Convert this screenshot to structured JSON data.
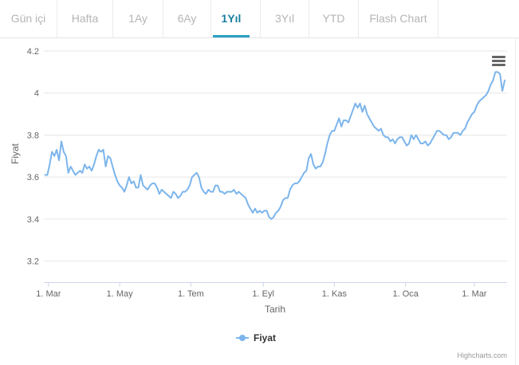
{
  "tabs": [
    {
      "label": "Gün içi",
      "active": false
    },
    {
      "label": "Hafta",
      "active": false
    },
    {
      "label": "1Ay",
      "active": false
    },
    {
      "label": "6Ay",
      "active": false
    },
    {
      "label": "1Yıl",
      "active": true
    },
    {
      "label": "3Yıl",
      "active": false
    },
    {
      "label": "YTD",
      "active": false
    },
    {
      "label": "Flash Chart",
      "active": false
    }
  ],
  "credit": "Highcharts.com",
  "colors": {
    "series": "#7cb5ec",
    "grid": "#e6e6e6",
    "axis_text": "#666666",
    "active_tab": "#1a7fa0"
  },
  "chart_data": {
    "type": "line",
    "title": "",
    "xlabel": "Tarih",
    "ylabel": "Fiyat",
    "ylim": [
      3.1,
      4.2
    ],
    "yticks": [
      3.2,
      3.4,
      3.6,
      3.8,
      4.0,
      4.2
    ],
    "ytick_labels": [
      "3.2",
      "3.4",
      "3.6",
      "3.8",
      "4",
      "4.2"
    ],
    "xlim": [
      "2017-02-25",
      "2018-03-29"
    ],
    "xticks": [
      {
        "date": "2017-03-01",
        "label": "1. Mar"
      },
      {
        "date": "2017-05-01",
        "label": "1. May"
      },
      {
        "date": "2017-07-01",
        "label": "1. Tem"
      },
      {
        "date": "2017-09-01",
        "label": "1. Eyl"
      },
      {
        "date": "2017-11-01",
        "label": "1. Kas"
      },
      {
        "date": "2018-01-01",
        "label": "1. Oca"
      },
      {
        "date": "2018-03-01",
        "label": "1. Mar"
      }
    ],
    "grid": true,
    "legend": "bottom-center",
    "series": [
      {
        "name": "Fiyat",
        "x": [
          "2017-02-26",
          "2017-02-28",
          "2017-03-02",
          "2017-03-04",
          "2017-03-06",
          "2017-03-08",
          "2017-03-10",
          "2017-03-12",
          "2017-03-14",
          "2017-03-16",
          "2017-03-18",
          "2017-03-20",
          "2017-03-22",
          "2017-03-24",
          "2017-03-26",
          "2017-03-28",
          "2017-03-30",
          "2017-04-01",
          "2017-04-03",
          "2017-04-05",
          "2017-04-07",
          "2017-04-09",
          "2017-04-11",
          "2017-04-13",
          "2017-04-15",
          "2017-04-17",
          "2017-04-19",
          "2017-04-21",
          "2017-04-23",
          "2017-04-25",
          "2017-04-27",
          "2017-04-29",
          "2017-05-01",
          "2017-05-03",
          "2017-05-05",
          "2017-05-07",
          "2017-05-09",
          "2017-05-11",
          "2017-05-13",
          "2017-05-15",
          "2017-05-17",
          "2017-05-19",
          "2017-05-21",
          "2017-05-23",
          "2017-05-25",
          "2017-05-27",
          "2017-05-29",
          "2017-05-31",
          "2017-06-02",
          "2017-06-04",
          "2017-06-06",
          "2017-06-08",
          "2017-06-10",
          "2017-06-12",
          "2017-06-14",
          "2017-06-16",
          "2017-06-18",
          "2017-06-20",
          "2017-06-22",
          "2017-06-24",
          "2017-06-26",
          "2017-06-28",
          "2017-06-30",
          "2017-07-02",
          "2017-07-04",
          "2017-07-06",
          "2017-07-08",
          "2017-07-10",
          "2017-07-12",
          "2017-07-14",
          "2017-07-16",
          "2017-07-18",
          "2017-07-20",
          "2017-07-22",
          "2017-07-24",
          "2017-07-26",
          "2017-07-28",
          "2017-07-30",
          "2017-08-01",
          "2017-08-03",
          "2017-08-05",
          "2017-08-07",
          "2017-08-09",
          "2017-08-11",
          "2017-08-13",
          "2017-08-15",
          "2017-08-17",
          "2017-08-19",
          "2017-08-21",
          "2017-08-23",
          "2017-08-25",
          "2017-08-27",
          "2017-08-29",
          "2017-08-31",
          "2017-09-02",
          "2017-09-04",
          "2017-09-06",
          "2017-09-08",
          "2017-09-10",
          "2017-09-12",
          "2017-09-14",
          "2017-09-16",
          "2017-09-18",
          "2017-09-20",
          "2017-09-22",
          "2017-09-24",
          "2017-09-26",
          "2017-09-28",
          "2017-09-30",
          "2017-10-02",
          "2017-10-04",
          "2017-10-06",
          "2017-10-08",
          "2017-10-10",
          "2017-10-12",
          "2017-10-14",
          "2017-10-16",
          "2017-10-18",
          "2017-10-20",
          "2017-10-22",
          "2017-10-24",
          "2017-10-26",
          "2017-10-28",
          "2017-10-30",
          "2017-11-01",
          "2017-11-03",
          "2017-11-05",
          "2017-11-07",
          "2017-11-09",
          "2017-11-11",
          "2017-11-13",
          "2017-11-15",
          "2017-11-17",
          "2017-11-19",
          "2017-11-21",
          "2017-11-23",
          "2017-11-25",
          "2017-11-27",
          "2017-11-29",
          "2017-12-01",
          "2017-12-03",
          "2017-12-05",
          "2017-12-07",
          "2017-12-09",
          "2017-12-11",
          "2017-12-13",
          "2017-12-15",
          "2017-12-17",
          "2017-12-19",
          "2017-12-21",
          "2017-12-23",
          "2017-12-25",
          "2017-12-27",
          "2017-12-29",
          "2017-12-31",
          "2018-01-02",
          "2018-01-04",
          "2018-01-06",
          "2018-01-08",
          "2018-01-10",
          "2018-01-12",
          "2018-01-14",
          "2018-01-16",
          "2018-01-18",
          "2018-01-20",
          "2018-01-22",
          "2018-01-24",
          "2018-01-26",
          "2018-01-28",
          "2018-01-30",
          "2018-02-01",
          "2018-02-03",
          "2018-02-05",
          "2018-02-07",
          "2018-02-09",
          "2018-02-11",
          "2018-02-13",
          "2018-02-15",
          "2018-02-17",
          "2018-02-19",
          "2018-02-21",
          "2018-02-23",
          "2018-02-25",
          "2018-02-27",
          "2018-03-01",
          "2018-03-03",
          "2018-03-05",
          "2018-03-07",
          "2018-03-09",
          "2018-03-11",
          "2018-03-13",
          "2018-03-15",
          "2018-03-17",
          "2018-03-19",
          "2018-03-21",
          "2018-03-23",
          "2018-03-25",
          "2018-03-27"
        ],
        "y": [
          3.61,
          3.61,
          3.66,
          3.72,
          3.7,
          3.73,
          3.68,
          3.77,
          3.72,
          3.7,
          3.62,
          3.65,
          3.63,
          3.61,
          3.62,
          3.63,
          3.62,
          3.66,
          3.64,
          3.65,
          3.63,
          3.66,
          3.7,
          3.73,
          3.72,
          3.73,
          3.65,
          3.7,
          3.69,
          3.65,
          3.61,
          3.58,
          3.56,
          3.55,
          3.53,
          3.56,
          3.6,
          3.57,
          3.58,
          3.55,
          3.55,
          3.61,
          3.56,
          3.55,
          3.54,
          3.56,
          3.57,
          3.57,
          3.55,
          3.52,
          3.54,
          3.53,
          3.52,
          3.51,
          3.5,
          3.53,
          3.52,
          3.5,
          3.51,
          3.53,
          3.53,
          3.54,
          3.56,
          3.6,
          3.61,
          3.62,
          3.6,
          3.55,
          3.53,
          3.52,
          3.54,
          3.53,
          3.53,
          3.56,
          3.56,
          3.53,
          3.53,
          3.52,
          3.53,
          3.53,
          3.53,
          3.54,
          3.52,
          3.53,
          3.52,
          3.51,
          3.5,
          3.47,
          3.45,
          3.43,
          3.45,
          3.43,
          3.44,
          3.43,
          3.44,
          3.44,
          3.41,
          3.4,
          3.41,
          3.43,
          3.44,
          3.46,
          3.49,
          3.5,
          3.5,
          3.54,
          3.56,
          3.57,
          3.57,
          3.58,
          3.6,
          3.62,
          3.63,
          3.69,
          3.71,
          3.66,
          3.64,
          3.65,
          3.65,
          3.67,
          3.71,
          3.76,
          3.8,
          3.82,
          3.82,
          3.85,
          3.88,
          3.84,
          3.87,
          3.87,
          3.86,
          3.89,
          3.92,
          3.95,
          3.93,
          3.95,
          3.91,
          3.94,
          3.9,
          3.88,
          3.86,
          3.84,
          3.83,
          3.82,
          3.83,
          3.8,
          3.79,
          3.79,
          3.77,
          3.78,
          3.76,
          3.78,
          3.79,
          3.79,
          3.77,
          3.75,
          3.76,
          3.8,
          3.78,
          3.8,
          3.78,
          3.76,
          3.76,
          3.77,
          3.75,
          3.76,
          3.78,
          3.8,
          3.82,
          3.82,
          3.81,
          3.8,
          3.8,
          3.78,
          3.79,
          3.81,
          3.81,
          3.81,
          3.8,
          3.82,
          3.83,
          3.86,
          3.88,
          3.9,
          3.91,
          3.94,
          3.96,
          3.97,
          3.98,
          3.99,
          4.01,
          4.04,
          4.06,
          4.1,
          4.1,
          4.09,
          4.01,
          4.06
        ]
      }
    ]
  }
}
